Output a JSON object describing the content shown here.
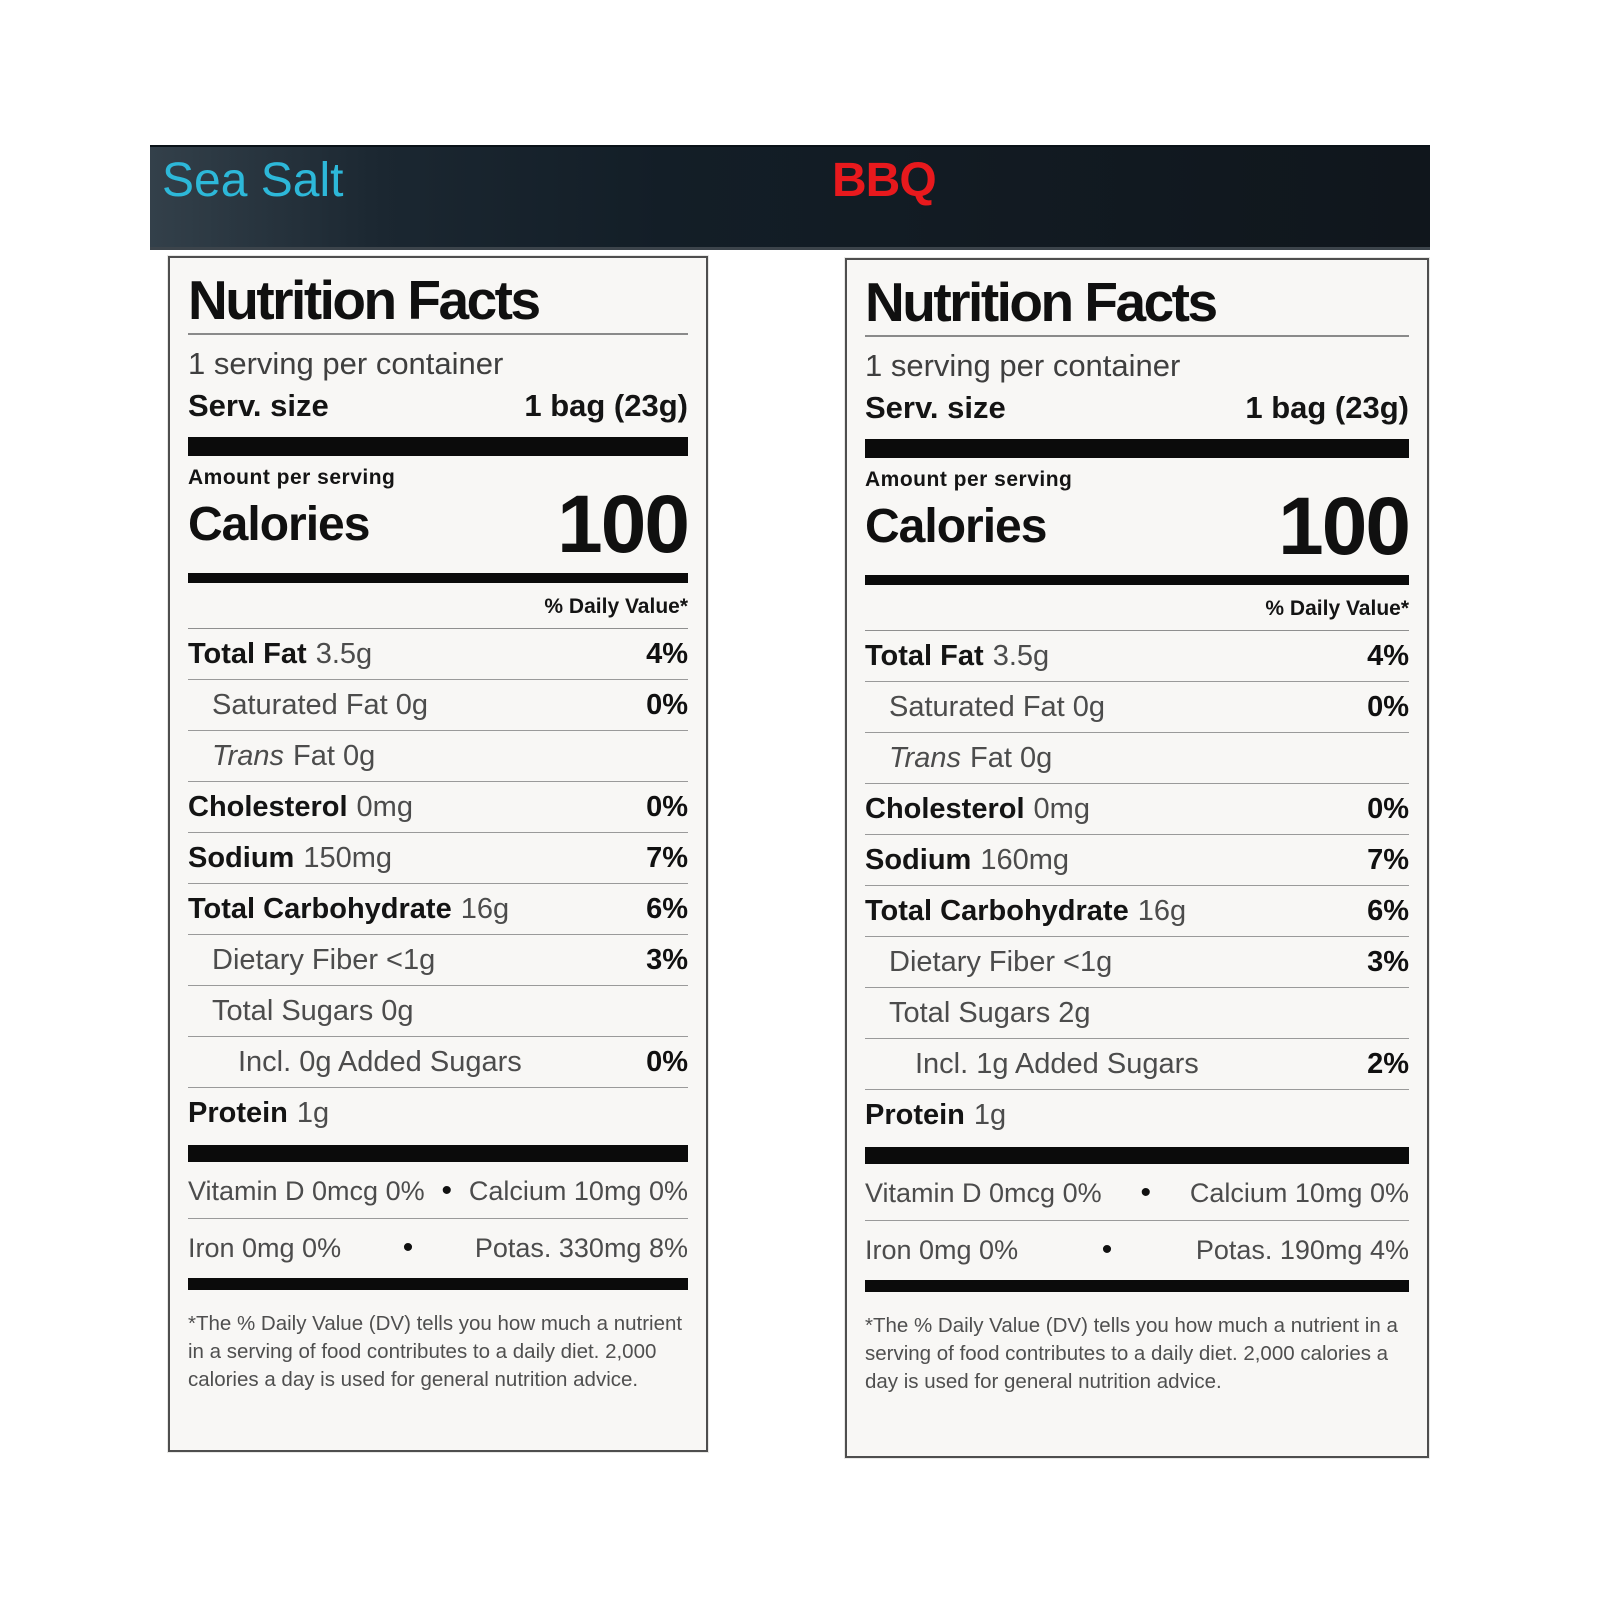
{
  "header": {
    "bg_color": "#131e27",
    "flavors": [
      {
        "label": "Sea Salt",
        "color": "#2db8d9"
      },
      {
        "label": "BBQ",
        "color": "#e8191d"
      }
    ]
  },
  "labels": [
    {
      "flavor": "Sea Salt",
      "title": "Nutrition Facts",
      "servings_per_container": "1 serving per container",
      "serving_size_label": "Serv. size",
      "serving_size_value": "1 bag (23g)",
      "amount_per_serving": "Amount per serving",
      "calories_label": "Calories",
      "calories_value": "100",
      "daily_value_header": "% Daily Value*",
      "rows": [
        {
          "bold": "Total Fat",
          "rest": "3.5g",
          "dv": "4%"
        },
        {
          "rest": "Saturated Fat 0g",
          "dv": "0%"
        },
        {
          "italic": "Trans",
          "rest": "Fat 0g"
        },
        {
          "bold": "Cholesterol",
          "rest": "0mg",
          "dv": "0%"
        },
        {
          "bold": "Sodium",
          "rest": "150mg",
          "dv": "7%"
        },
        {
          "bold": "Total Carbohydrate",
          "rest": "16g",
          "dv": "6%"
        },
        {
          "rest": "Dietary Fiber <1g",
          "dv": "3%"
        },
        {
          "rest": "Total Sugars 0g"
        },
        {
          "rest": "Incl. 0g Added Sugars",
          "dv": "0%"
        },
        {
          "bold": "Protein",
          "rest": "1g"
        }
      ],
      "bullet": "•",
      "micronutrients": [
        {
          "left": "Vitamin D 0mcg 0%",
          "right": "Calcium 10mg 0%"
        },
        {
          "left": "Iron 0mg 0%",
          "right": "Potas. 330mg 8%"
        }
      ],
      "footnote": "*The % Daily Value (DV) tells you how much a nutrient in a serving of food contributes to a daily diet. 2,000 calories a day is used for general nutrition advice."
    },
    {
      "flavor": "BBQ",
      "title": "Nutrition Facts",
      "servings_per_container": "1 serving per container",
      "serving_size_label": "Serv. size",
      "serving_size_value": "1 bag (23g)",
      "amount_per_serving": "Amount per serving",
      "calories_label": "Calories",
      "calories_value": "100",
      "daily_value_header": "% Daily Value*",
      "rows": [
        {
          "bold": "Total Fat",
          "rest": "3.5g",
          "dv": "4%"
        },
        {
          "rest": "Saturated Fat 0g",
          "dv": "0%"
        },
        {
          "italic": "Trans",
          "rest": "Fat 0g"
        },
        {
          "bold": "Cholesterol",
          "rest": "0mg",
          "dv": "0%"
        },
        {
          "bold": "Sodium",
          "rest": "160mg",
          "dv": "7%"
        },
        {
          "bold": "Total Carbohydrate",
          "rest": "16g",
          "dv": "6%"
        },
        {
          "rest": "Dietary Fiber <1g",
          "dv": "3%"
        },
        {
          "rest": "Total Sugars 2g"
        },
        {
          "rest": "Incl. 1g Added Sugars",
          "dv": "2%"
        },
        {
          "bold": "Protein",
          "rest": "1g"
        }
      ],
      "bullet": "•",
      "micronutrients": [
        {
          "left": "Vitamin D 0mcg 0%",
          "right": "Calcium 10mg 0%"
        },
        {
          "left": "Iron 0mg 0%",
          "right": "Potas. 190mg 4%"
        }
      ],
      "footnote": "*The % Daily Value (DV) tells you how much a nutrient in a serving of food contributes to a daily diet. 2,000 calories a day is used for general nutrition advice."
    }
  ]
}
